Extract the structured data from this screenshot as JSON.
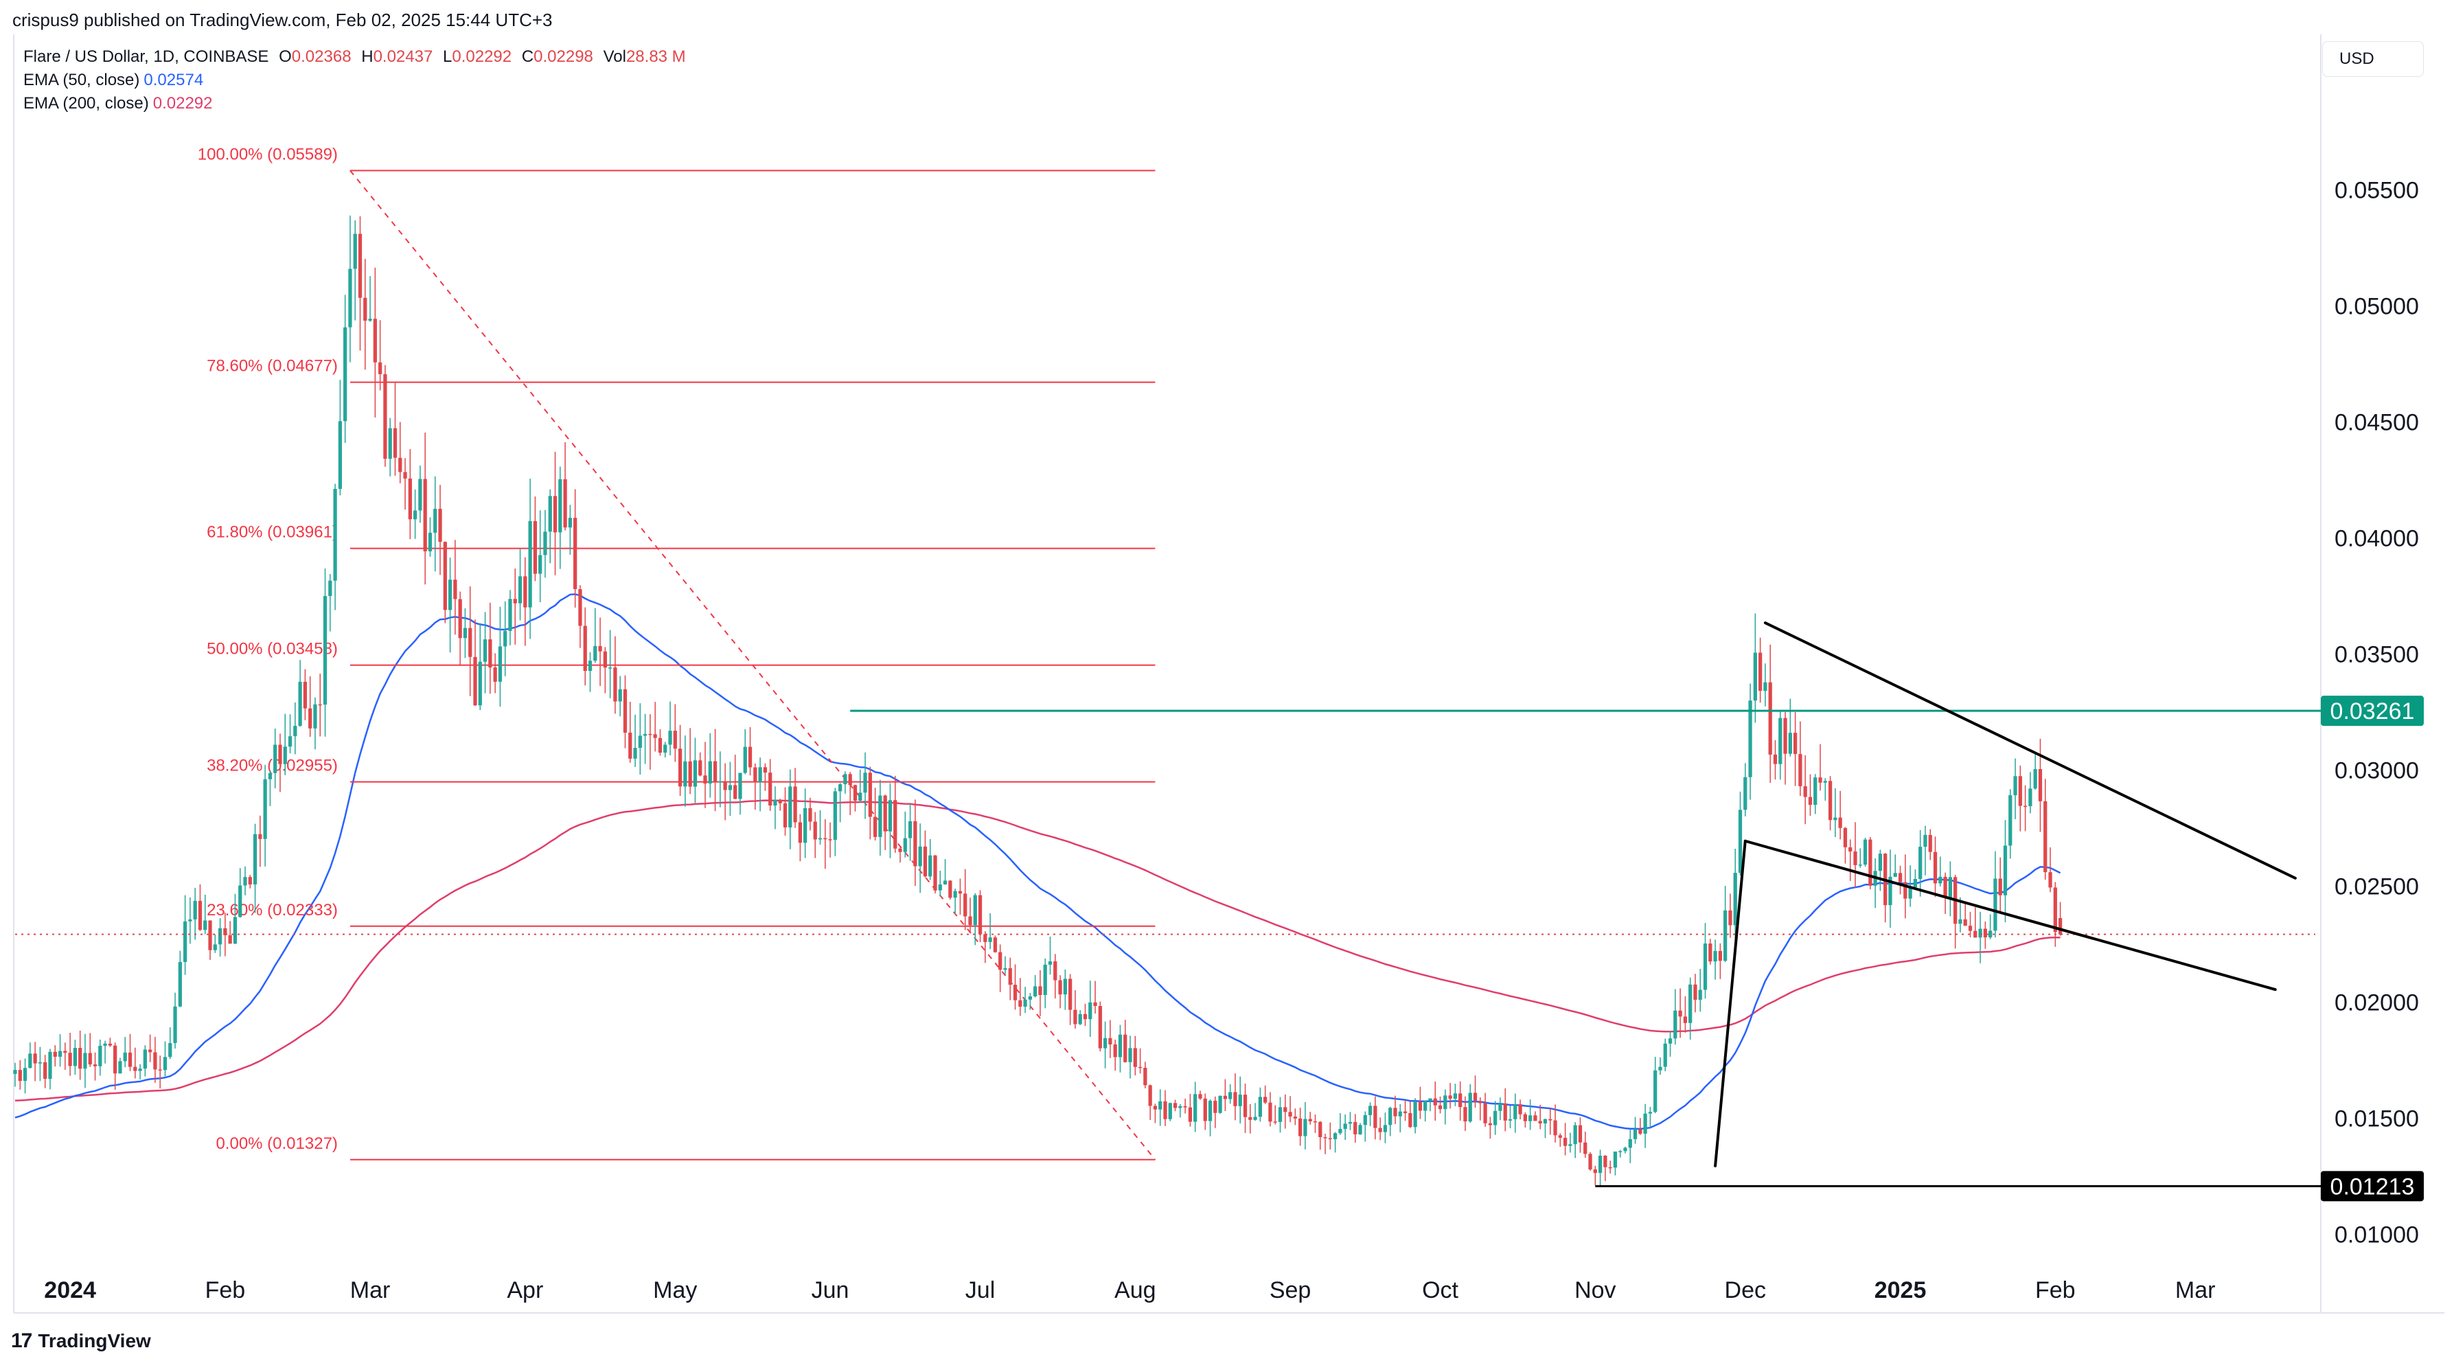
{
  "header": {
    "published": "crispus9 published on TradingView.com, Feb 02, 2025 15:44 UTC+3"
  },
  "legend": {
    "symbol": "Flare / US Dollar, 1D, COINBASE",
    "open_label": "O",
    "open": "0.02368",
    "high_label": "H",
    "high": "0.02437",
    "low_label": "L",
    "low": "0.02292",
    "close_label": "C",
    "close": "0.02298",
    "vol_label": "Vol",
    "vol": "28.83 M",
    "ema50_label": "EMA (50, close)",
    "ema50": "0.02574",
    "ema200_label": "EMA (200, close)",
    "ema200": "0.02292"
  },
  "currency_button": "USD",
  "footer": {
    "logo": "17",
    "brand": "TradingView"
  },
  "colors": {
    "up": "#26a69a",
    "down": "#e0474b",
    "ema50": "#2962ff",
    "ema200": "#e03e6b",
    "fib": "#f23645",
    "resistance": "#089981",
    "trend": "#000000",
    "text": "#131722"
  },
  "chart_data": {
    "type": "candlestick",
    "symbol": "FLR/USD",
    "ylim": [
      0.0085,
      0.0588
    ],
    "xlim": [
      "2023-12-21",
      "2025-03-25"
    ],
    "price_axis_ticks": [
      "0.01000",
      "0.01500",
      "0.02000",
      "0.02500",
      "0.03000",
      "0.03500",
      "0.04000",
      "0.04500",
      "0.05000",
      "0.05500"
    ],
    "time_axis_ticks": [
      {
        "label": "2024",
        "date": "2024-01-01",
        "bold": true
      },
      {
        "label": "Feb",
        "date": "2024-02-01"
      },
      {
        "label": "Mar",
        "date": "2024-03-01"
      },
      {
        "label": "Apr",
        "date": "2024-04-01"
      },
      {
        "label": "May",
        "date": "2024-05-01"
      },
      {
        "label": "Jun",
        "date": "2024-06-01"
      },
      {
        "label": "Jul",
        "date": "2024-07-01"
      },
      {
        "label": "Aug",
        "date": "2024-08-01"
      },
      {
        "label": "Sep",
        "date": "2024-09-01"
      },
      {
        "label": "Oct",
        "date": "2024-10-01"
      },
      {
        "label": "Nov",
        "date": "2024-11-01"
      },
      {
        "label": "Dec",
        "date": "2024-12-01"
      },
      {
        "label": "2025",
        "date": "2025-01-01",
        "bold": true
      },
      {
        "label": "Feb",
        "date": "2025-02-01"
      },
      {
        "label": "Mar",
        "date": "2025-03-01"
      }
    ],
    "price_anchors": [
      [
        "2023-12-21",
        0.0169
      ],
      [
        "2024-01-05",
        0.0178
      ],
      [
        "2024-01-20",
        0.0172
      ],
      [
        "2024-01-24",
        0.0238
      ],
      [
        "2024-02-01",
        0.0223
      ],
      [
        "2024-02-05",
        0.025
      ],
      [
        "2024-02-10",
        0.0302
      ],
      [
        "2024-02-15",
        0.0322
      ],
      [
        "2024-02-20",
        0.034
      ],
      [
        "2024-02-24",
        0.046
      ],
      [
        "2024-02-26",
        0.053
      ],
      [
        "2024-03-01",
        0.048
      ],
      [
        "2024-03-08",
        0.042
      ],
      [
        "2024-03-15",
        0.0395
      ],
      [
        "2024-03-22",
        0.0335
      ],
      [
        "2024-03-28",
        0.0355
      ],
      [
        "2024-04-03",
        0.04
      ],
      [
        "2024-04-09",
        0.0415
      ],
      [
        "2024-04-12",
        0.0365
      ],
      [
        "2024-04-18",
        0.033
      ],
      [
        "2024-04-25",
        0.0312
      ],
      [
        "2024-05-05",
        0.03
      ],
      [
        "2024-05-15",
        0.0298
      ],
      [
        "2024-05-25",
        0.0282
      ],
      [
        "2024-06-01",
        0.028
      ],
      [
        "2024-06-05",
        0.0298
      ],
      [
        "2024-06-10",
        0.0282
      ],
      [
        "2024-06-18",
        0.0265
      ],
      [
        "2024-06-25",
        0.0245
      ],
      [
        "2024-07-01",
        0.024
      ],
      [
        "2024-07-08",
        0.02
      ],
      [
        "2024-07-15",
        0.021
      ],
      [
        "2024-07-22",
        0.0195
      ],
      [
        "2024-07-30",
        0.0178
      ],
      [
        "2024-08-05",
        0.0152
      ],
      [
        "2024-08-15",
        0.0156
      ],
      [
        "2024-08-25",
        0.0155
      ],
      [
        "2024-09-05",
        0.0145
      ],
      [
        "2024-09-15",
        0.015
      ],
      [
        "2024-09-25",
        0.0152
      ],
      [
        "2024-10-01",
        0.016
      ],
      [
        "2024-10-10",
        0.0152
      ],
      [
        "2024-10-20",
        0.0149
      ],
      [
        "2024-10-28",
        0.0143
      ],
      [
        "2024-11-03",
        0.0126
      ],
      [
        "2024-11-10",
        0.0142
      ],
      [
        "2024-11-14",
        0.0175
      ],
      [
        "2024-11-20",
        0.0205
      ],
      [
        "2024-11-28",
        0.0235
      ],
      [
        "2024-12-01",
        0.029
      ],
      [
        "2024-12-03",
        0.0355
      ],
      [
        "2024-12-06",
        0.032
      ],
      [
        "2024-12-12",
        0.03
      ],
      [
        "2024-12-18",
        0.029
      ],
      [
        "2024-12-24",
        0.0265
      ],
      [
        "2024-12-30",
        0.025
      ],
      [
        "2025-01-06",
        0.0265
      ],
      [
        "2025-01-12",
        0.0245
      ],
      [
        "2025-01-16",
        0.023
      ],
      [
        "2025-01-20",
        0.0245
      ],
      [
        "2025-01-24",
        0.029
      ],
      [
        "2025-01-27",
        0.03
      ],
      [
        "2025-01-29",
        0.028
      ],
      [
        "2025-01-31",
        0.024
      ],
      [
        "2025-02-02",
        0.023
      ]
    ],
    "last_ohlc": {
      "open": 0.02368,
      "high": 0.02437,
      "low": 0.02292,
      "close": 0.02298
    },
    "ema50_last": 0.02574,
    "ema200_last": 0.02292,
    "fibonacci": {
      "start_date": "2024-02-26",
      "end_date": "2024-08-05",
      "levels": [
        {
          "ratio": "100.00%",
          "price": 0.05589,
          "label": "100.00% (0.05589)"
        },
        {
          "ratio": "78.60%",
          "price": 0.04677,
          "label": "78.60% (0.04677)"
        },
        {
          "ratio": "61.80%",
          "price": 0.03961,
          "label": "61.80% (0.03961)"
        },
        {
          "ratio": "50.00%",
          "price": 0.03458,
          "label": "50.00% (0.03458)"
        },
        {
          "ratio": "38.20%",
          "price": 0.02955,
          "label": "38.20% (0.02955)"
        },
        {
          "ratio": "23.60%",
          "price": 0.02333,
          "label": "23.60% (0.02333)"
        },
        {
          "ratio": "0.00%",
          "price": 0.01327,
          "label": "0.00% (0.01327)"
        }
      ]
    },
    "horizontal_lines": [
      {
        "price": 0.03261,
        "label": "0.03261",
        "start": "2024-06-05",
        "color": "#089981"
      },
      {
        "price": 0.01213,
        "label": "0.01213",
        "start": "2024-11-01",
        "color": "#000000"
      }
    ],
    "trendlines": [
      {
        "from": [
          "2024-11-25",
          0.013
        ],
        "to": [
          "2024-12-01",
          0.027
        ]
      },
      {
        "from": [
          "2024-12-01",
          0.027
        ],
        "to": [
          "2025-03-17",
          0.0206
        ]
      },
      {
        "from": [
          "2024-12-05",
          0.0364
        ],
        "to": [
          "2025-03-21",
          0.0254
        ]
      }
    ]
  }
}
